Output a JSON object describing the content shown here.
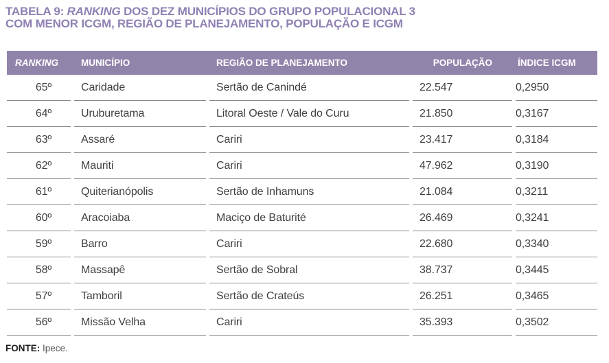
{
  "title": {
    "part1": "TABELA 9: ",
    "part1_italic": "RANKING",
    "part1_rest": " DOS DEZ MUNICÍPIOS DO GRUPO POPULACIONAL 3",
    "line2": "COM MENOR ICGM, REGIÃO DE PLANEJAMENTO, POPULAÇÃO E ICGM"
  },
  "table": {
    "columns": [
      "RANKING",
      "MUNICÍPIO",
      "REGIÃO DE PLANEJAMENTO",
      "POPULAÇÃO",
      "ÍNDICE ICGM"
    ],
    "rows": [
      {
        "ranking": "65º",
        "municipio": "Caridade",
        "regiao": "Sertão de Canindé",
        "populacao": "22.547",
        "indice": "0,2950"
      },
      {
        "ranking": "64º",
        "municipio": "Uruburetama",
        "regiao": "Litoral Oeste / Vale do Curu",
        "populacao": "21.850",
        "indice": "0,3167"
      },
      {
        "ranking": "63º",
        "municipio": "Assaré",
        "regiao": "Cariri",
        "populacao": "23.417",
        "indice": "0,3184"
      },
      {
        "ranking": "62º",
        "municipio": "Mauriti",
        "regiao": "Cariri",
        "populacao": "47.962",
        "indice": "0,3190"
      },
      {
        "ranking": "61º",
        "municipio": "Quiterianópolis",
        "regiao": "Sertão de Inhamuns",
        "populacao": "21.084",
        "indice": "0,3211"
      },
      {
        "ranking": "60º",
        "municipio": "Aracoiaba",
        "regiao": "Maciço de Baturité",
        "populacao": "26.469",
        "indice": "0,3241"
      },
      {
        "ranking": "59º",
        "municipio": "Barro",
        "regiao": "Cariri",
        "populacao": "22.680",
        "indice": "0,3340"
      },
      {
        "ranking": "58º",
        "municipio": "Massapê",
        "regiao": "Sertão de Sobral",
        "populacao": "38.737",
        "indice": "0,3445"
      },
      {
        "ranking": "57º",
        "municipio": "Tamboril",
        "regiao": "Sertão de Crateús",
        "populacao": "26.251",
        "indice": "0,3465"
      },
      {
        "ranking": "56º",
        "municipio": "Missão Velha",
        "regiao": "Cariri",
        "populacao": "35.393",
        "indice": "0,3502"
      }
    ]
  },
  "source": {
    "label": "FONTE:",
    "value": "Ipece."
  },
  "colors": {
    "header_bg": "#9184ab",
    "header_text": "#ffffff",
    "title_text": "#8f81b3",
    "body_text": "#3f3f3f",
    "divider": "#8a8a8a",
    "source_label": "#1c1c1c",
    "source_text": "#555555"
  }
}
